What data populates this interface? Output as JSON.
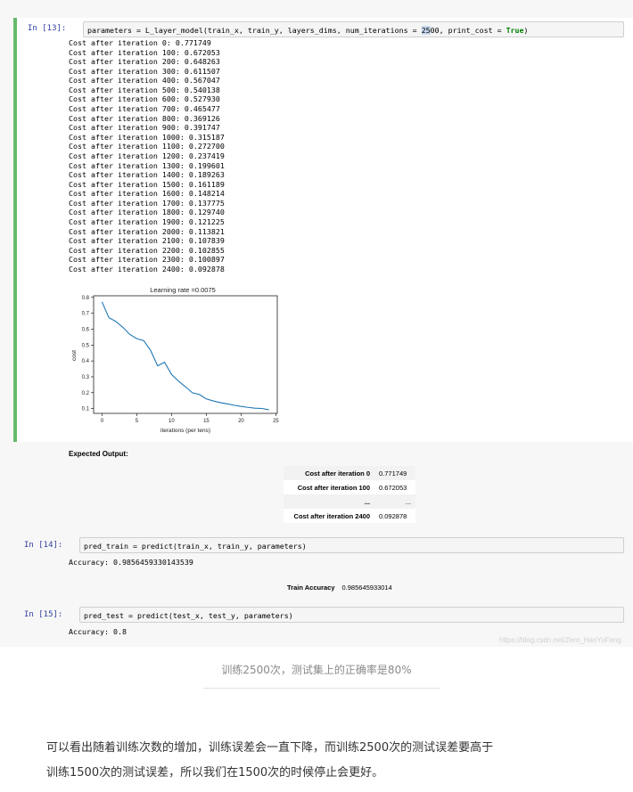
{
  "cells": {
    "c13": {
      "prompt": "In [13]:",
      "code_pre": "parameters = L_layer_model(train_x, train_y, layers_dims, num_iterations = ",
      "code_hl": "25",
      "code_mid": "00, print_cost = ",
      "code_kw": "True",
      "code_post": ")",
      "output_lines": [
        "Cost after iteration 0: 0.771749",
        "Cost after iteration 100: 0.672053",
        "Cost after iteration 200: 0.648263",
        "Cost after iteration 300: 0.611507",
        "Cost after iteration 400: 0.567047",
        "Cost after iteration 500: 0.540138",
        "Cost after iteration 600: 0.527930",
        "Cost after iteration 700: 0.465477",
        "Cost after iteration 800: 0.369126",
        "Cost after iteration 900: 0.391747",
        "Cost after iteration 1000: 0.315187",
        "Cost after iteration 1100: 0.272700",
        "Cost after iteration 1200: 0.237419",
        "Cost after iteration 1300: 0.199601",
        "Cost after iteration 1400: 0.189263",
        "Cost after iteration 1500: 0.161189",
        "Cost after iteration 1600: 0.148214",
        "Cost after iteration 1700: 0.137775",
        "Cost after iteration 1800: 0.129740",
        "Cost after iteration 1900: 0.121225",
        "Cost after iteration 2000: 0.113821",
        "Cost after iteration 2100: 0.107839",
        "Cost after iteration 2200: 0.102855",
        "Cost after iteration 2300: 0.100897",
        "Cost after iteration 2400: 0.092878"
      ]
    },
    "expected": {
      "heading": "Expected Output:",
      "rows": [
        {
          "label": "Cost after iteration 0",
          "value": "0.771749"
        },
        {
          "label": "Cost after iteration 100",
          "value": "0.672053"
        },
        {
          "label": "...",
          "value": "..."
        },
        {
          "label": "Cost after iteration 2400",
          "value": "0.092878"
        }
      ]
    },
    "c14": {
      "prompt": "In [14]:",
      "code": "pred_train = predict(train_x, train_y, parameters)",
      "output": "Accuracy: 0.9856459330143539",
      "table_label": "Train Accuracy",
      "table_value": "0.985645933014"
    },
    "c15": {
      "prompt": "In [15]:",
      "code": "pred_test = predict(test_x, test_y, parameters)",
      "output": "Accuracy: 0.8"
    }
  },
  "watermark": "https://blog.csdn.net/Zero_HaoYuFeng",
  "caption": "训练2500次，测试集上的正确率是80%",
  "paragraph": {
    "line1": "可以看出随着训练次数的增加，训练误差会一直下降，而训练2500次的测试误差要高于",
    "line2": "训练1500次的测试误差，所以我们在1500次的时候停止会更好。"
  },
  "chart_data": {
    "type": "line",
    "title": "Learning rate =0.0075",
    "xlabel": "iterations (per tens)",
    "ylabel": "cost",
    "xlim": [
      -1.2,
      25.2
    ],
    "ylim": [
      0.07,
      0.81
    ],
    "xticks": [
      0,
      5,
      10,
      15,
      20,
      25
    ],
    "yticks": [
      0.1,
      0.2,
      0.3,
      0.4,
      0.5,
      0.6,
      0.7,
      0.8
    ],
    "x": [
      0,
      1,
      2,
      3,
      4,
      5,
      6,
      7,
      8,
      9,
      10,
      11,
      12,
      13,
      14,
      15,
      16,
      17,
      18,
      19,
      20,
      21,
      22,
      23,
      24
    ],
    "series": [
      {
        "color": "#1f77b4",
        "values": [
          0.771749,
          0.672053,
          0.648263,
          0.611507,
          0.567047,
          0.540138,
          0.52793,
          0.465477,
          0.369126,
          0.391747,
          0.315187,
          0.2727,
          0.237419,
          0.199601,
          0.189263,
          0.161189,
          0.148214,
          0.137775,
          0.12974,
          0.121225,
          0.113821,
          0.107839,
          0.102855,
          0.100897,
          0.092878
        ]
      }
    ],
    "grid": false,
    "legend": "none"
  }
}
